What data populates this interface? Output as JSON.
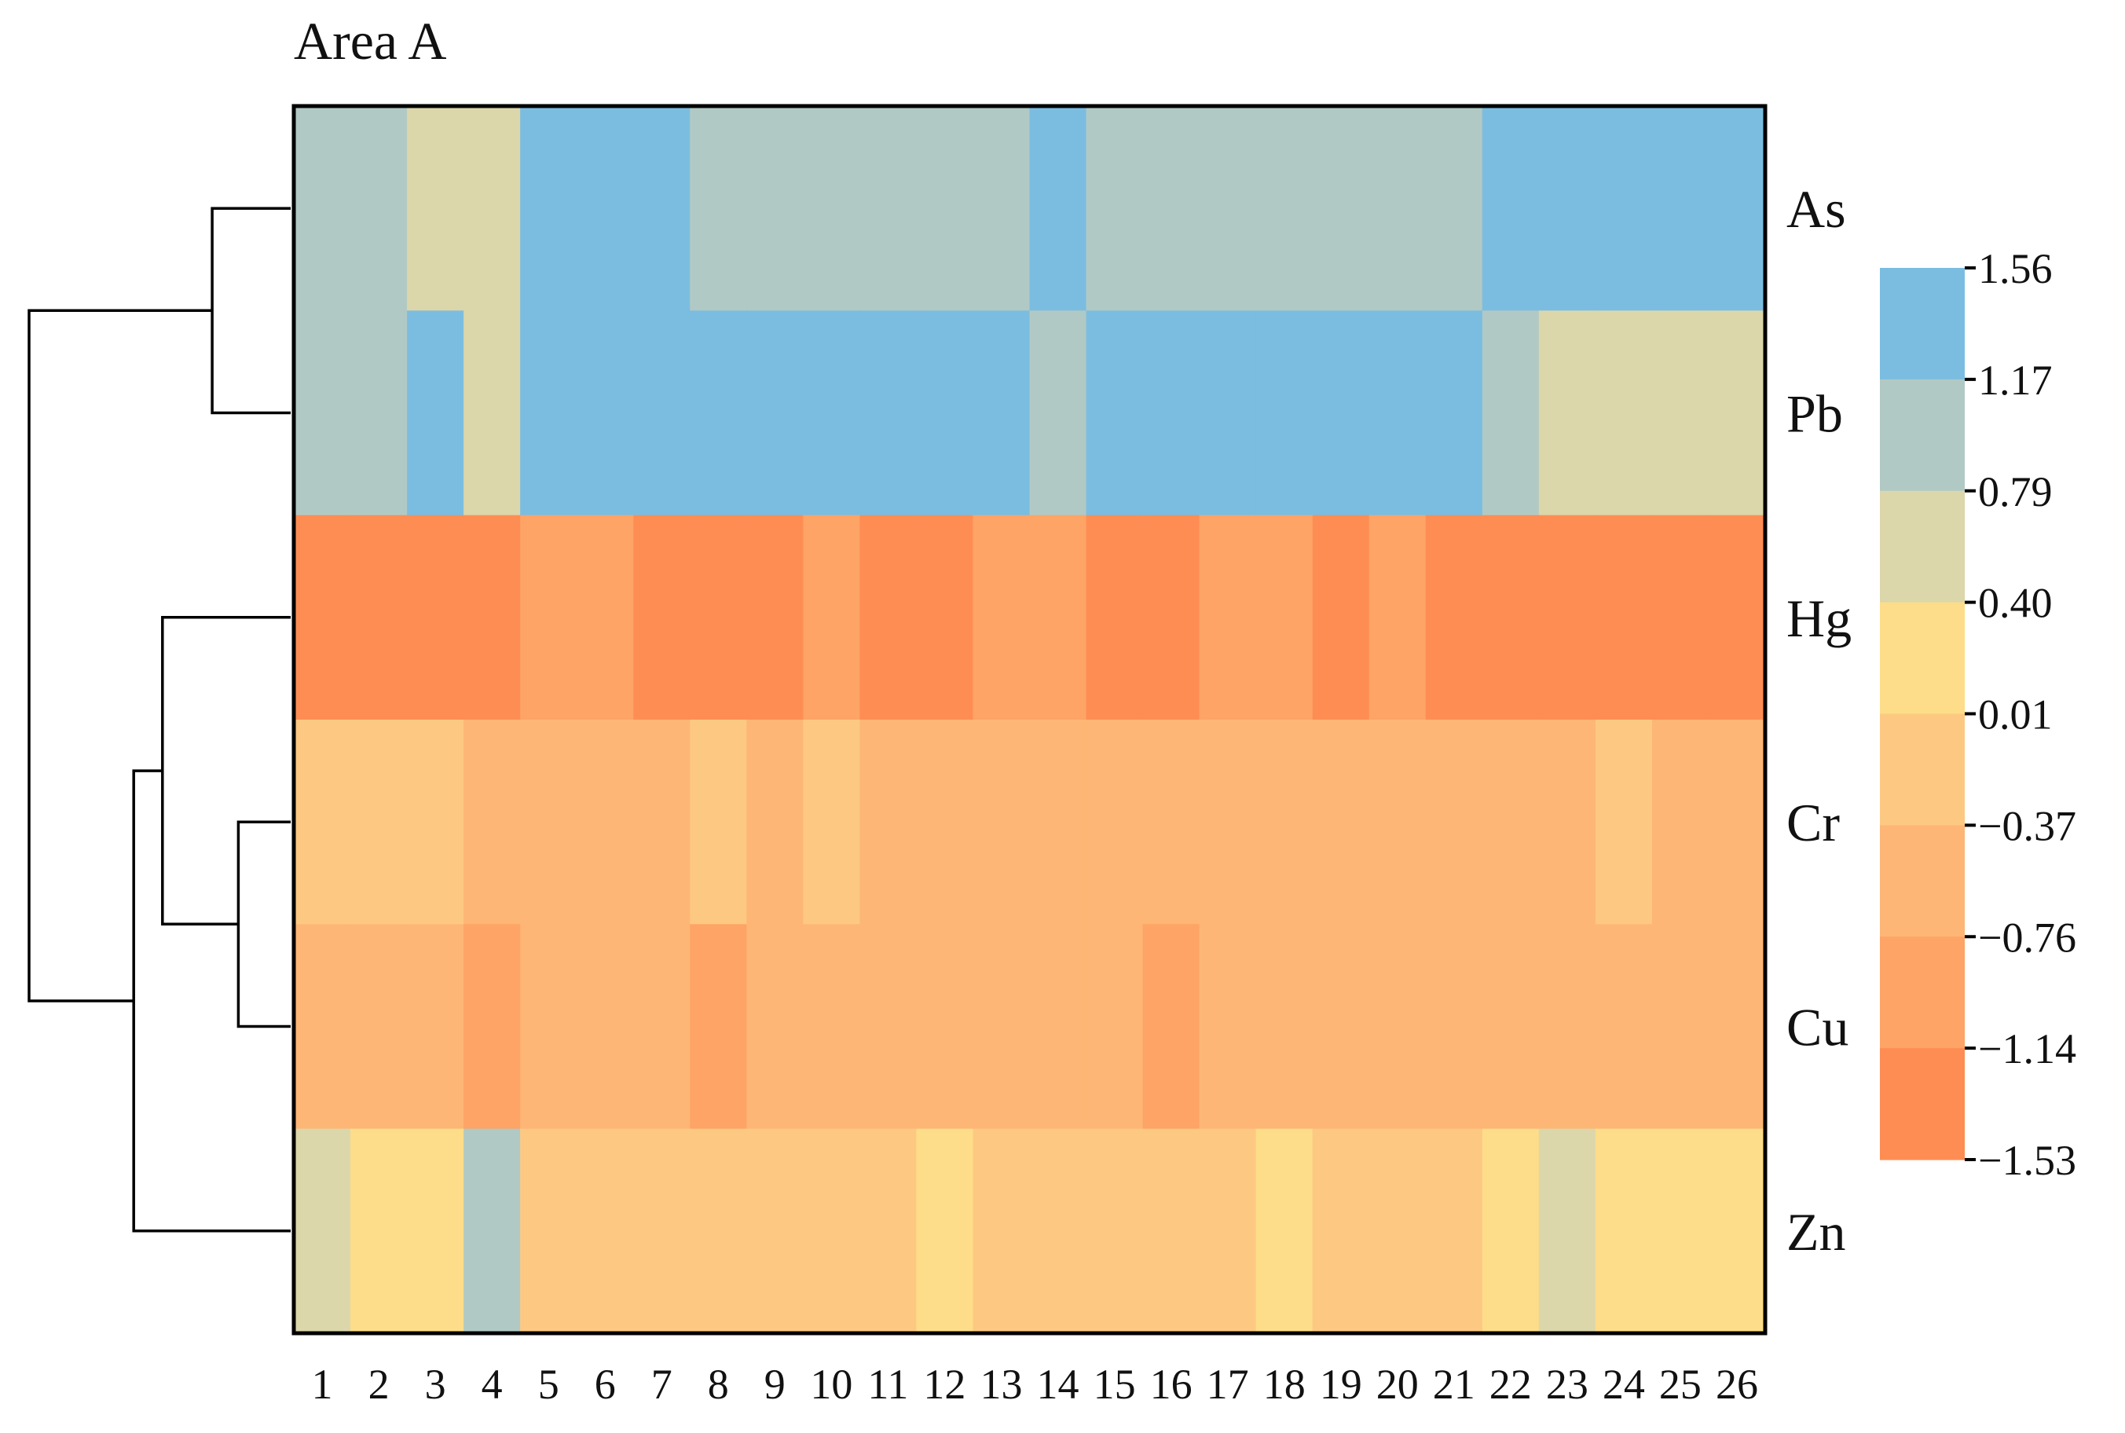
{
  "chart_data": {
    "type": "heatmap",
    "title": "Area A",
    "rows": [
      "As",
      "Pb",
      "Hg",
      "Cr",
      "Cu",
      "Zn"
    ],
    "columns": [
      "1",
      "2",
      "3",
      "4",
      "5",
      "6",
      "7",
      "8",
      "9",
      "10",
      "11",
      "12",
      "13",
      "14",
      "15",
      "16",
      "17",
      "18",
      "19",
      "20",
      "21",
      "22",
      "23",
      "24",
      "25",
      "26"
    ],
    "values": [
      [
        1.0,
        1.0,
        0.6,
        0.6,
        1.4,
        1.4,
        1.4,
        1.0,
        1.0,
        1.0,
        1.0,
        1.0,
        1.0,
        1.4,
        1.0,
        1.0,
        1.0,
        1.0,
        1.0,
        1.0,
        1.0,
        1.4,
        1.4,
        1.4,
        1.4,
        1.4
      ],
      [
        1.0,
        1.0,
        1.4,
        0.6,
        1.4,
        1.4,
        1.4,
        1.4,
        1.4,
        1.4,
        1.4,
        1.4,
        1.4,
        1.0,
        1.4,
        1.4,
        1.4,
        1.4,
        1.4,
        1.4,
        1.4,
        1.0,
        0.6,
        0.6,
        0.6,
        0.6
      ],
      [
        -1.3,
        -1.3,
        -1.3,
        -1.3,
        -0.95,
        -0.95,
        -1.3,
        -1.3,
        -1.3,
        -0.95,
        -1.3,
        -1.3,
        -0.95,
        -0.95,
        -1.3,
        -1.3,
        -0.95,
        -0.95,
        -1.3,
        -0.95,
        -1.3,
        -1.3,
        -1.3,
        -1.3,
        -1.3,
        -1.3
      ],
      [
        -0.2,
        -0.2,
        -0.2,
        -0.55,
        -0.55,
        -0.55,
        -0.55,
        -0.2,
        -0.55,
        -0.2,
        -0.55,
        -0.55,
        -0.55,
        -0.55,
        -0.55,
        -0.55,
        -0.55,
        -0.55,
        -0.55,
        -0.55,
        -0.55,
        -0.55,
        -0.55,
        -0.2,
        -0.55,
        -0.55
      ],
      [
        -0.55,
        -0.55,
        -0.55,
        -0.95,
        -0.55,
        -0.55,
        -0.55,
        -0.95,
        -0.55,
        -0.55,
        -0.55,
        -0.55,
        -0.55,
        -0.55,
        -0.55,
        -0.95,
        -0.55,
        -0.55,
        -0.55,
        -0.55,
        -0.55,
        -0.55,
        -0.55,
        -0.55,
        -0.55,
        -0.55
      ],
      [
        0.6,
        0.2,
        0.2,
        1.0,
        -0.2,
        -0.2,
        -0.2,
        -0.2,
        -0.2,
        -0.2,
        -0.2,
        0.2,
        -0.2,
        -0.2,
        -0.2,
        -0.2,
        -0.2,
        0.2,
        -0.2,
        -0.2,
        -0.2,
        0.2,
        0.6,
        0.2,
        0.2,
        0.2
      ]
    ],
    "colorbar": {
      "ticks": [
        "1.56",
        "1.17",
        "0.79",
        "0.40",
        "0.01",
        "−0.37",
        "−0.76",
        "−1.14",
        "−1.53"
      ],
      "boundaries": [
        1.56,
        1.17,
        0.79,
        0.4,
        0.01,
        -0.37,
        -0.76,
        -1.14,
        -1.53
      ],
      "colors": [
        "#7bbde0",
        "#b1c9c4",
        "#dcd6ab",
        "#fddd89",
        "#fdc982",
        "#fdb675",
        "#fda466",
        "#fe8d54"
      ]
    },
    "dendrogram": {
      "leaf_order": [
        "As",
        "Pb",
        "Hg",
        "Cr",
        "Cu",
        "Zn"
      ],
      "merges": [
        {
          "a": "As",
          "b": "Pb",
          "height": 0.3
        },
        {
          "a": "Cr",
          "b": "Cu",
          "height": 0.2
        },
        {
          "a": "Hg",
          "b": "Cr+Cu",
          "height": 0.49
        },
        {
          "a": "Hg+Cr+Cu",
          "b": "Zn",
          "height": 0.6
        },
        {
          "a": "As+Pb",
          "b": "Hg+Cr+Cu+Zn",
          "height": 1.0
        }
      ]
    }
  }
}
